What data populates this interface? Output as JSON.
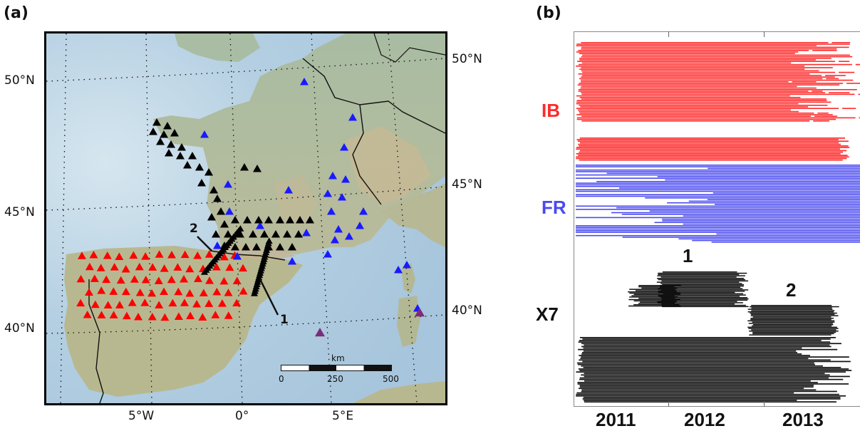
{
  "panels": {
    "a": "(a)",
    "b": "(b)"
  },
  "map": {
    "lat_labels_left": [
      "50°N",
      "45°N",
      "40°N"
    ],
    "lat_labels_right": [
      "50°N",
      "45°N",
      "40°N"
    ],
    "lon_labels": [
      "5°W",
      "0°",
      "5°E"
    ],
    "scale_bar": {
      "unit": "km",
      "ticks": [
        "0",
        "250",
        "500"
      ]
    },
    "transect_labels": [
      "1",
      "2"
    ],
    "colors": {
      "IB": "#ff0000",
      "FR": "#1a1aff",
      "X7": "#000000",
      "other": "#7b2d7b",
      "sea": "#bcd3e4",
      "land": "#9fb59a"
    }
  },
  "timeline": {
    "networks": [
      {
        "code": "IB",
        "color": "#ff2a2a"
      },
      {
        "code": "FR",
        "color": "#4a4af0"
      },
      {
        "code": "X7",
        "color": "#111111"
      }
    ],
    "years": [
      "2011",
      "2012",
      "2013"
    ],
    "deployments": [
      "1",
      "2"
    ]
  }
}
